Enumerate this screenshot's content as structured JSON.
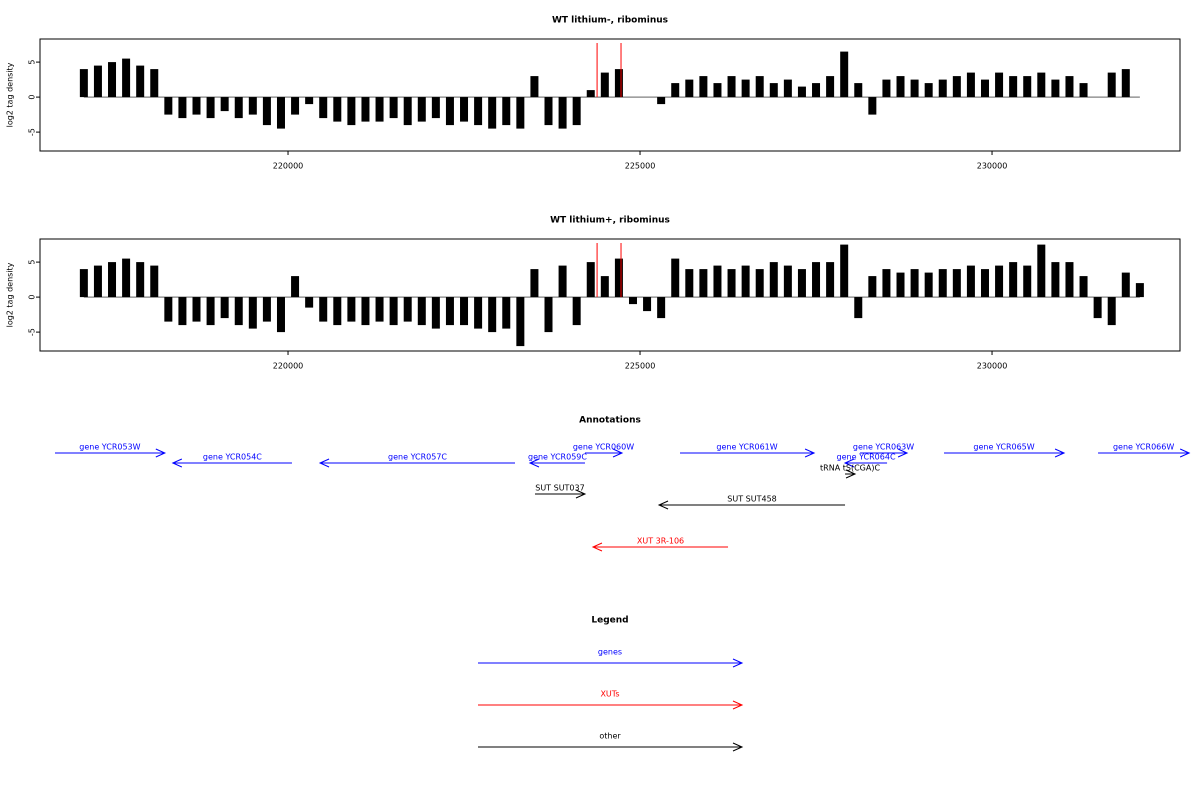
{
  "chart_data": [
    {
      "type": "bar",
      "title": "WT lithium-, ribominus",
      "y_label": "log2 tag density",
      "x": [
        217100,
        217300,
        217500,
        217700,
        217900,
        218100,
        218300,
        218500,
        218700,
        218900,
        219100,
        219300,
        219500,
        219700,
        219900,
        220100,
        220300,
        220500,
        220700,
        220900,
        221100,
        221300,
        221500,
        221700,
        221900,
        222100,
        222300,
        222500,
        222700,
        222900,
        223100,
        223300,
        223500,
        223700,
        223900,
        224100,
        224300,
        224500,
        224700,
        224900,
        225100,
        225300,
        225500,
        225700,
        225900,
        226100,
        226300,
        226500,
        226700,
        226900,
        227100,
        227300,
        227500,
        227700,
        227900,
        228100,
        228300,
        228500,
        228700,
        228900,
        229100,
        229300,
        229500,
        229700,
        229900,
        230100,
        230300,
        230500,
        230700,
        230900,
        231100,
        231300,
        231500,
        231700,
        231900,
        232100
      ],
      "values": [
        4,
        4.5,
        5,
        5.5,
        4.5,
        4,
        -2.5,
        -3,
        -2.5,
        -3,
        -2,
        -3,
        -2.5,
        -4,
        -4.5,
        -2.5,
        -1,
        -3,
        -3.5,
        -4,
        -3.5,
        -3.5,
        -3,
        -4,
        -3.5,
        -3,
        -4,
        -3.5,
        -4,
        -4.5,
        -4,
        -4.5,
        3,
        -4,
        -4.5,
        -4,
        1,
        3.5,
        4,
        0,
        0,
        -1,
        2,
        2.5,
        3,
        2,
        3,
        2.5,
        3,
        2,
        2.5,
        1.5,
        2,
        3,
        6.5,
        2,
        -2.5,
        2.5,
        3,
        2.5,
        2,
        2.5,
        3,
        3.5,
        2.5,
        3.5,
        3,
        3,
        3.5,
        2.5,
        3,
        2,
        0,
        3.5,
        4,
        0
      ],
      "color": "#000000",
      "highlights": [
        224390,
        224730
      ],
      "highlight_color": "#ff0000",
      "xlim": [
        216477,
        232670
      ],
      "ylim": [
        -7.7,
        8.3
      ],
      "xticks": [
        220000,
        225000,
        230000
      ],
      "yticks": [
        -5,
        0,
        5
      ]
    },
    {
      "type": "bar",
      "title": "WT lithium+, ribominus",
      "y_label": "log2 tag density",
      "x": [
        217100,
        217300,
        217500,
        217700,
        217900,
        218100,
        218300,
        218500,
        218700,
        218900,
        219100,
        219300,
        219500,
        219700,
        219900,
        220100,
        220300,
        220500,
        220700,
        220900,
        221100,
        221300,
        221500,
        221700,
        221900,
        222100,
        222300,
        222500,
        222700,
        222900,
        223100,
        223300,
        223500,
        223700,
        223900,
        224100,
        224300,
        224500,
        224700,
        224900,
        225100,
        225300,
        225500,
        225700,
        225900,
        226100,
        226300,
        226500,
        226700,
        226900,
        227100,
        227300,
        227500,
        227700,
        227900,
        228100,
        228300,
        228500,
        228700,
        228900,
        229100,
        229300,
        229500,
        229700,
        229900,
        230100,
        230300,
        230500,
        230700,
        230900,
        231100,
        231300,
        231500,
        231700,
        231900,
        232100
      ],
      "values": [
        4,
        4.5,
        5,
        5.5,
        5,
        4.5,
        -3.5,
        -4,
        -3.5,
        -4,
        -3,
        -4,
        -4.5,
        -3.5,
        -5,
        3,
        -1.5,
        -3.5,
        -4,
        -3.5,
        -4,
        -3.5,
        -4,
        -3.5,
        -4,
        -4.5,
        -4,
        -4,
        -4.5,
        -5,
        -4.5,
        -7,
        4,
        -5,
        4.5,
        -4,
        5,
        3,
        5.5,
        -1,
        -2,
        -3,
        5.5,
        4,
        4,
        4.5,
        4,
        4.5,
        4,
        5,
        4.5,
        4,
        5,
        5,
        7.5,
        -3,
        3,
        4,
        3.5,
        4,
        3.5,
        4,
        4,
        4.5,
        4,
        4.5,
        5,
        4.5,
        7.5,
        5,
        5,
        3,
        -3,
        -4,
        3.5,
        2
      ],
      "color": "#000000",
      "highlights": [
        224390,
        224730
      ],
      "highlight_color": "#ff0000",
      "xlim": [
        216477,
        232670
      ],
      "ylim": [
        -7.7,
        8.3
      ],
      "xticks": [
        220000,
        225000,
        230000
      ],
      "yticks": [
        -5,
        0,
        5
      ]
    }
  ],
  "annotations": {
    "title": "Annotations",
    "xlim": [
      216477,
      232670
    ],
    "items": [
      {
        "label": "gene YCR053W",
        "start": 216690,
        "end": 218250,
        "strand": "+",
        "color": "#0000ff"
      },
      {
        "label": "gene YCR054C",
        "start": 218364,
        "end": 220056,
        "strand": "-",
        "color": "#0000ff"
      },
      {
        "label": "gene YCR057C",
        "start": 220455,
        "end": 223224,
        "strand": "-",
        "color": "#0000ff"
      },
      {
        "label": "gene YCR059C",
        "start": 223437,
        "end": 224218,
        "strand": "-",
        "color": "#0000ff"
      },
      {
        "label": "gene YCR060W",
        "start": 224218,
        "end": 224744,
        "strand": "+",
        "color": "#0000ff"
      },
      {
        "label": "gene YCR061W",
        "start": 225568,
        "end": 227472,
        "strand": "+",
        "color": "#0000ff"
      },
      {
        "label": "gene YCR063W",
        "start": 228125,
        "end": 228793,
        "strand": "+",
        "color": "#0000ff"
      },
      {
        "label": "gene YCR064C",
        "start": 227912,
        "end": 228509,
        "strand": "-",
        "color": "#0000ff"
      },
      {
        "label": "tRNA tS(CGA)C",
        "start": 227912,
        "end": 228054,
        "strand": "+",
        "color": "#000000"
      },
      {
        "label": "gene YCR065W",
        "start": 229318,
        "end": 231023,
        "strand": "+",
        "color": "#0000ff"
      },
      {
        "label": "gene YCR066W",
        "start": 231506,
        "end": 232800,
        "strand": "+",
        "color": "#0000ff"
      },
      {
        "label": "SUT SUT037",
        "start": 223508,
        "end": 224218,
        "strand": "+",
        "color": "#000000"
      },
      {
        "label": "SUT SUT458",
        "start": 225270,
        "end": 227912,
        "strand": "-",
        "color": "#000000"
      },
      {
        "label": "XUT 3R-106",
        "start": 224332,
        "end": 226250,
        "strand": "-",
        "color": "#ff0000"
      }
    ]
  },
  "legend": {
    "title": "Legend",
    "items": [
      {
        "label": "genes",
        "color": "#0000ff"
      },
      {
        "label": "XUTs",
        "color": "#ff0000"
      },
      {
        "label": "other",
        "color": "#000000"
      }
    ]
  }
}
